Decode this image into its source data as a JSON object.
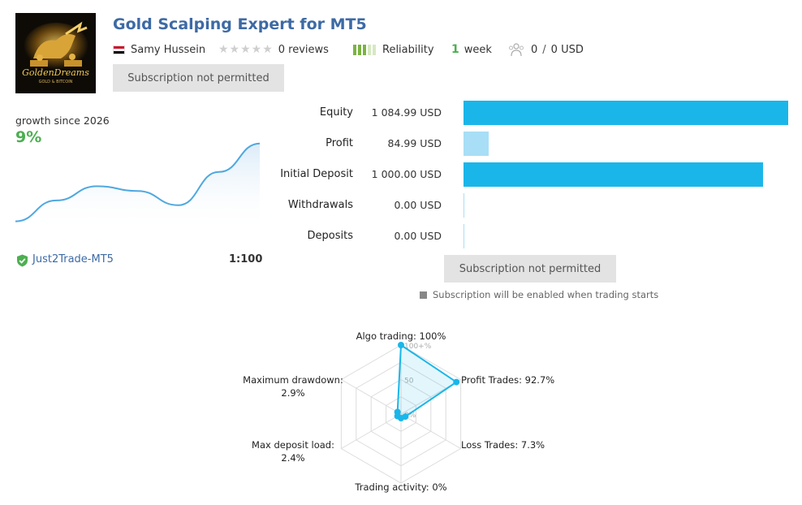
{
  "header": {
    "title": "Gold Scalping Expert for MT5",
    "author": "Samy Hussein",
    "reviews": "0 reviews",
    "rating_stars": 0,
    "reliability_label": "Reliability",
    "reliability_bars": 3,
    "age_value": "1",
    "age_unit": "week",
    "subscribers": "0",
    "funds": "0 USD",
    "subscription_button": "Subscription not permitted"
  },
  "logo": {
    "line1": "GoldenDreams",
    "line2": "GOLD & BITCOIN"
  },
  "growth": {
    "label": "growth since 2026",
    "value": "9%"
  },
  "sparkline": [
    0.08,
    0.3,
    0.45,
    0.4,
    0.25,
    0.6,
    0.9
  ],
  "broker": {
    "name": "Just2Trade-MT5",
    "leverage": "1:100"
  },
  "stats": [
    {
      "label": "Equity",
      "value": "1 084.99 USD",
      "bar": 1.0,
      "color": "#1ab6ea"
    },
    {
      "label": "Profit",
      "value": "84.99 USD",
      "bar": 0.078,
      "color": "#a8def6"
    },
    {
      "label": "Initial Deposit",
      "value": "1 000.00 USD",
      "bar": 0.922,
      "color": "#1ab6ea"
    },
    {
      "label": "Withdrawals",
      "value": "0.00 USD",
      "bar": 0,
      "color": "#a8def6"
    },
    {
      "label": "Deposits",
      "value": "0.00 USD",
      "bar": 0,
      "color": "#a8def6"
    }
  ],
  "subscription_button_2": "Subscription not permitted",
  "note": "Subscription will be enabled when trading starts",
  "radar": {
    "tick_max": "100+%",
    "tick_mid": "50",
    "tick_min": "0%",
    "axes": [
      {
        "name": "Algo trading:",
        "value_text": "100%",
        "value": 1.0
      },
      {
        "name": "Profit Trades:",
        "value_text": "92.7%",
        "value": 0.927
      },
      {
        "name": "Loss Trades:",
        "value_text": "7.3%",
        "value": 0.073
      },
      {
        "name": "Trading activity:",
        "value_text": "0%",
        "value": 0.0
      },
      {
        "name": "Max deposit load:",
        "value_text": "2.4%",
        "value": 0.024
      },
      {
        "name": "Maximum drawdown:",
        "value_text": "2.9%",
        "value": 0.029
      }
    ]
  },
  "colors": {
    "title": "#3d6aa5",
    "accent_blue": "#1ab6ea",
    "light_blue": "#a8def6",
    "green": "#4caf50",
    "reliability": "#7cb342"
  }
}
